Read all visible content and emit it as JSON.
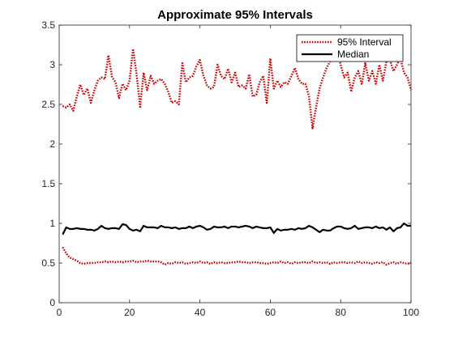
{
  "chart_data": {
    "type": "line",
    "title": "Approximate 95% Intervals",
    "xlabel": "",
    "ylabel": "",
    "xlim": [
      0,
      100
    ],
    "ylim": [
      0,
      3.5
    ],
    "xticks": [
      0,
      20,
      40,
      60,
      80,
      100
    ],
    "yticks": [
      0,
      0.5,
      1,
      1.5,
      2,
      2.5,
      3,
      3.5
    ],
    "xtick_labels": [
      "0",
      "20",
      "40",
      "60",
      "80",
      "100"
    ],
    "ytick_labels": [
      "0",
      "0.5",
      "1",
      "1.5",
      "2",
      "2.5",
      "3",
      "3.5"
    ],
    "grid": false,
    "legend_position": "top-right",
    "series": [
      {
        "name": "95% Interval",
        "role": "upper",
        "style": "dotted",
        "color": "#cc0000",
        "x": [
          1,
          2,
          3,
          4,
          5,
          6,
          7,
          8,
          9,
          10,
          11,
          12,
          13,
          14,
          15,
          16,
          17,
          18,
          19,
          20,
          21,
          22,
          23,
          24,
          25,
          26,
          27,
          28,
          29,
          30,
          31,
          32,
          33,
          34,
          35,
          36,
          37,
          38,
          39,
          40,
          41,
          42,
          43,
          44,
          45,
          46,
          47,
          48,
          49,
          50,
          51,
          52,
          53,
          54,
          55,
          56,
          57,
          58,
          59,
          60,
          61,
          62,
          63,
          64,
          65,
          66,
          67,
          68,
          69,
          70,
          71,
          72,
          73,
          74,
          75,
          76,
          77,
          78,
          79,
          80,
          81,
          82,
          83,
          84,
          85,
          86,
          87,
          88,
          89,
          90,
          91,
          92,
          93,
          94,
          95,
          96,
          97,
          98,
          99,
          100
        ],
        "values": [
          2.48,
          2.46,
          2.5,
          2.42,
          2.6,
          2.75,
          2.62,
          2.7,
          2.52,
          2.68,
          2.8,
          2.84,
          2.82,
          3.12,
          2.85,
          2.78,
          2.58,
          2.76,
          2.68,
          2.8,
          3.2,
          2.88,
          2.47,
          2.9,
          2.68,
          2.86,
          2.76,
          2.8,
          2.82,
          2.76,
          2.66,
          2.52,
          2.54,
          2.5,
          3.02,
          2.78,
          2.84,
          2.86,
          2.98,
          3.06,
          2.86,
          2.74,
          2.7,
          2.72,
          3.0,
          2.86,
          2.82,
          2.95,
          2.78,
          2.9,
          2.72,
          2.74,
          2.7,
          2.88,
          2.6,
          2.62,
          2.78,
          2.86,
          2.52,
          3.08,
          2.7,
          2.8,
          2.72,
          2.78,
          2.76,
          2.86,
          2.96,
          2.82,
          2.76,
          2.76,
          2.6,
          2.2,
          2.46,
          2.7,
          2.84,
          2.96,
          3.04,
          3.1,
          3.18,
          3.0,
          2.84,
          2.9,
          2.66,
          2.84,
          2.92,
          2.76,
          3.02,
          2.8,
          2.92,
          2.76,
          3.0,
          2.8,
          3.04,
          3.06,
          2.92,
          3.0,
          3.08,
          2.9,
          2.84,
          2.68
        ]
      },
      {
        "name": "",
        "role": "lower",
        "style": "dotted",
        "color": "#cc0000",
        "x": [
          1,
          2,
          3,
          4,
          5,
          6,
          7,
          8,
          9,
          10,
          11,
          12,
          13,
          14,
          15,
          16,
          17,
          18,
          19,
          20,
          21,
          22,
          23,
          24,
          25,
          26,
          27,
          28,
          29,
          30,
          31,
          32,
          33,
          34,
          35,
          36,
          37,
          38,
          39,
          40,
          41,
          42,
          43,
          44,
          45,
          46,
          47,
          48,
          49,
          50,
          51,
          52,
          53,
          54,
          55,
          56,
          57,
          58,
          59,
          60,
          61,
          62,
          63,
          64,
          65,
          66,
          67,
          68,
          69,
          70,
          71,
          72,
          73,
          74,
          75,
          76,
          77,
          78,
          79,
          80,
          81,
          82,
          83,
          84,
          85,
          86,
          87,
          88,
          89,
          90,
          91,
          92,
          93,
          94,
          95,
          96,
          97,
          98,
          99,
          100
        ],
        "values": [
          0.7,
          0.62,
          0.57,
          0.55,
          0.53,
          0.5,
          0.49,
          0.5,
          0.5,
          0.5,
          0.51,
          0.51,
          0.52,
          0.51,
          0.52,
          0.51,
          0.52,
          0.51,
          0.52,
          0.52,
          0.53,
          0.51,
          0.52,
          0.52,
          0.53,
          0.52,
          0.52,
          0.52,
          0.51,
          0.48,
          0.5,
          0.49,
          0.51,
          0.5,
          0.51,
          0.49,
          0.5,
          0.51,
          0.5,
          0.52,
          0.5,
          0.51,
          0.49,
          0.51,
          0.5,
          0.51,
          0.5,
          0.5,
          0.51,
          0.51,
          0.52,
          0.51,
          0.51,
          0.5,
          0.51,
          0.51,
          0.5,
          0.5,
          0.49,
          0.5,
          0.51,
          0.5,
          0.52,
          0.5,
          0.51,
          0.49,
          0.51,
          0.5,
          0.51,
          0.51,
          0.5,
          0.52,
          0.5,
          0.51,
          0.5,
          0.51,
          0.49,
          0.51,
          0.5,
          0.51,
          0.51,
          0.5,
          0.51,
          0.5,
          0.52,
          0.5,
          0.51,
          0.5,
          0.49,
          0.51,
          0.5,
          0.51,
          0.48,
          0.5,
          0.51,
          0.49,
          0.51,
          0.5,
          0.49,
          0.5
        ]
      },
      {
        "name": "Median",
        "role": "median",
        "style": "solid",
        "color": "#000000",
        "x": [
          1,
          2,
          3,
          4,
          5,
          6,
          7,
          8,
          9,
          10,
          11,
          12,
          13,
          14,
          15,
          16,
          17,
          18,
          19,
          20,
          21,
          22,
          23,
          24,
          25,
          26,
          27,
          28,
          29,
          30,
          31,
          32,
          33,
          34,
          35,
          36,
          37,
          38,
          39,
          40,
          41,
          42,
          43,
          44,
          45,
          46,
          47,
          48,
          49,
          50,
          51,
          52,
          53,
          54,
          55,
          56,
          57,
          58,
          59,
          60,
          61,
          62,
          63,
          64,
          65,
          66,
          67,
          68,
          69,
          70,
          71,
          72,
          73,
          74,
          75,
          76,
          77,
          78,
          79,
          80,
          81,
          82,
          83,
          84,
          85,
          86,
          87,
          88,
          89,
          90,
          91,
          92,
          93,
          94,
          95,
          96,
          97,
          98,
          99,
          100
        ],
        "values": [
          0.86,
          0.95,
          0.93,
          0.93,
          0.94,
          0.93,
          0.93,
          0.92,
          0.92,
          0.91,
          0.93,
          0.97,
          0.94,
          0.93,
          0.94,
          0.94,
          0.93,
          0.99,
          0.98,
          0.93,
          0.91,
          0.92,
          0.9,
          0.97,
          0.95,
          0.95,
          0.95,
          0.94,
          0.97,
          0.95,
          0.95,
          0.94,
          0.95,
          0.93,
          0.94,
          0.94,
          0.96,
          0.94,
          0.96,
          0.97,
          0.95,
          0.92,
          0.93,
          0.96,
          0.95,
          0.95,
          0.96,
          0.94,
          0.96,
          0.96,
          0.95,
          0.96,
          0.97,
          0.96,
          0.94,
          0.96,
          0.95,
          0.94,
          0.94,
          0.95,
          0.88,
          0.93,
          0.91,
          0.92,
          0.92,
          0.93,
          0.92,
          0.94,
          0.93,
          0.94,
          0.97,
          0.95,
          0.92,
          0.89,
          0.92,
          0.91,
          0.91,
          0.94,
          0.96,
          0.96,
          0.94,
          0.93,
          0.94,
          0.97,
          0.93,
          0.94,
          0.95,
          0.95,
          0.94,
          0.96,
          0.94,
          0.95,
          0.92,
          0.95,
          0.9,
          0.94,
          0.95,
          1.0,
          0.97,
          0.97
        ]
      }
    ],
    "legend": [
      {
        "label": "95% Interval",
        "style": "dotted",
        "color": "#cc0000"
      },
      {
        "label": "Median",
        "style": "solid",
        "color": "#000000"
      }
    ]
  }
}
